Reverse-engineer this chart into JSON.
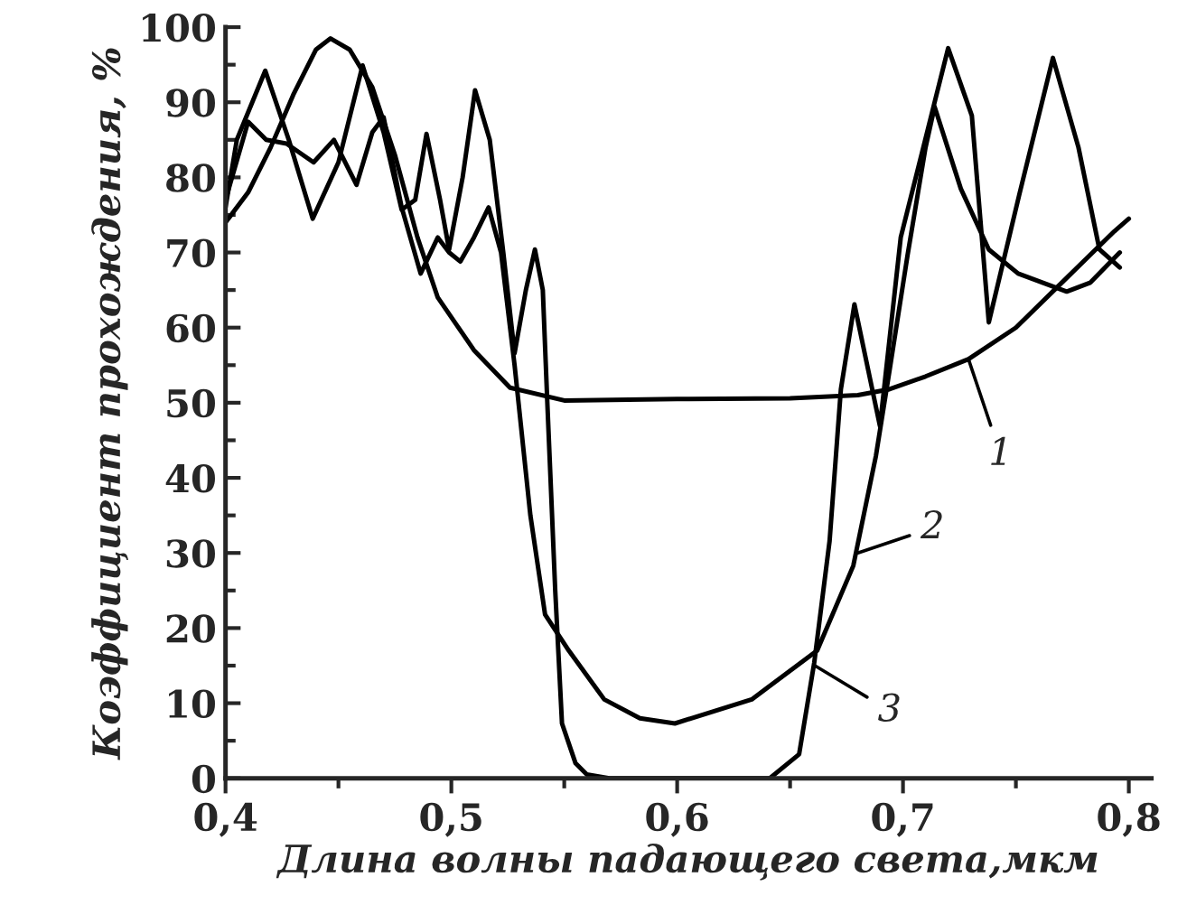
{
  "chart_data": {
    "type": "line",
    "xlabel": "Длина волны падающего света,мкм",
    "ylabel": "Коэффициент прохождения, %",
    "xlim": [
      0.4,
      0.81
    ],
    "ylim": [
      0,
      100
    ],
    "xticks": [
      {
        "value": 0.4,
        "label": "0,4"
      },
      {
        "value": 0.5,
        "label": "0,5"
      },
      {
        "value": 0.6,
        "label": "0,6"
      },
      {
        "value": 0.7,
        "label": "0,7"
      },
      {
        "value": 0.8,
        "label": "0,8"
      }
    ],
    "yticks": [
      0,
      10,
      20,
      30,
      40,
      50,
      60,
      70,
      80,
      90,
      100
    ],
    "grid": false,
    "legend": false,
    "marker": "none",
    "line_style": "solid",
    "series": [
      {
        "color": "#000000",
        "x": [
          0.4,
          0.41,
          0.42,
          0.43,
          0.44,
          0.4465,
          0.455,
          0.465,
          0.475,
          0.485,
          0.494,
          0.51,
          0.526,
          0.55,
          0.6,
          0.65,
          0.68,
          0.694,
          0.71,
          0.729,
          0.75,
          0.767,
          0.7935,
          0.8
        ],
        "values": [
          74,
          78,
          84,
          91,
          97,
          98.5,
          97,
          92,
          83,
          72,
          64,
          57,
          52,
          50.3,
          50.5,
          50.6,
          51,
          51.8,
          53.5,
          55.8,
          60,
          65,
          72.8,
          74.5
        ]
      },
      {
        "color": "#000000",
        "x": [
          0.4,
          0.41,
          0.418,
          0.427,
          0.439,
          0.448,
          0.458,
          0.465,
          0.47,
          0.478,
          0.4864,
          0.494,
          0.499,
          0.504,
          0.51,
          0.5165,
          0.522,
          0.528,
          0.535,
          0.5415,
          0.552,
          0.5677,
          0.5835,
          0.599,
          0.633,
          0.662,
          0.678,
          0.688,
          0.694,
          0.702,
          0.71,
          0.714,
          0.7256,
          0.738,
          0.751,
          0.7725,
          0.783,
          0.796
        ],
        "values": [
          77,
          87.4,
          85,
          84.5,
          82,
          85,
          79,
          86,
          88,
          76,
          67.2,
          72,
          70,
          68.8,
          72,
          76,
          70,
          55,
          35,
          21.8,
          17,
          10.5,
          8,
          7.3,
          10.5,
          17,
          28.3,
          42.9,
          54.2,
          69.6,
          84,
          89.4,
          78.5,
          70.4,
          67.2,
          64.8,
          66,
          70
        ]
      },
      {
        "color": "#000000",
        "x": [
          0.4,
          0.405,
          0.4176,
          0.428,
          0.4386,
          0.45,
          0.4607,
          0.47,
          0.478,
          0.484,
          0.489,
          0.495,
          0.499,
          0.505,
          0.5105,
          0.517,
          0.523,
          0.528,
          0.533,
          0.537,
          0.5405,
          0.5425,
          0.546,
          0.549,
          0.555,
          0.56,
          0.57,
          0.641,
          0.654,
          0.6607,
          0.6675,
          0.6725,
          0.6785,
          0.6898,
          0.699,
          0.72,
          0.7305,
          0.738,
          0.7515,
          0.7664,
          0.7777,
          0.787,
          0.796
        ],
        "values": [
          76,
          85,
          94.2,
          85,
          74.5,
          82,
          94.9,
          86,
          75.7,
          77,
          85.8,
          77,
          70.4,
          80,
          91.6,
          85,
          70,
          56.6,
          65,
          70.4,
          65,
          50,
          25,
          7.3,
          2,
          0.5,
          0,
          0,
          3.2,
          15.4,
          31.6,
          51.8,
          63.1,
          46.9,
          72,
          97.2,
          88.2,
          60.7,
          77.7,
          95.9,
          84,
          70.4,
          68
        ]
      }
    ],
    "annotations": [
      {
        "text": "1",
        "x": 0.729,
        "y": 55.8
      },
      {
        "text": "2",
        "x": 0.68,
        "y": 30
      },
      {
        "text": "3",
        "x": 0.661,
        "y": 15
      }
    ]
  }
}
